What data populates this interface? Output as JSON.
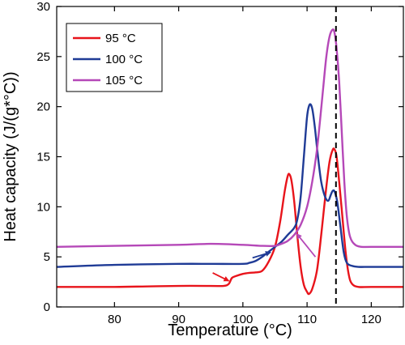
{
  "chart_data": {
    "type": "line",
    "title": "",
    "xlabel": "Temperature (°C)",
    "ylabel": "Heat capacity (J/(g*°C))",
    "xlim": [
      71,
      125
    ],
    "ylim": [
      0,
      30
    ],
    "xticks": [
      80,
      90,
      100,
      110,
      120
    ],
    "yticks": [
      0,
      5,
      10,
      15,
      20,
      25,
      30
    ],
    "grid": false,
    "legend_position": "top-left",
    "series": [
      {
        "name": "95 °C",
        "color": "#e8141b",
        "x": [
          71,
          80,
          85,
          90,
          95,
          97,
          97.8,
          98.3,
          99,
          100,
          101,
          102,
          103,
          104,
          105,
          105.8,
          106.5,
          107,
          107.3,
          107.6,
          108,
          108.5,
          109,
          109.5,
          110,
          110.3,
          110.8,
          111.5,
          112,
          112.5,
          113,
          113.5,
          114,
          114.3,
          114.6,
          115,
          115.5,
          116,
          116.5,
          117,
          118,
          120,
          125
        ],
        "y": [
          2.0,
          2.0,
          2.05,
          2.1,
          2.1,
          2.1,
          2.3,
          2.9,
          3.1,
          3.3,
          3.4,
          3.45,
          3.6,
          4.5,
          6.0,
          8.5,
          11.5,
          13.1,
          13.2,
          12.5,
          10.5,
          7.0,
          4.0,
          2.2,
          1.5,
          1.3,
          1.8,
          3.5,
          6.0,
          9.0,
          12.0,
          14.5,
          15.7,
          15.7,
          15.0,
          12.5,
          9.0,
          5.5,
          3.2,
          2.3,
          2.0,
          2.0,
          2.0
        ]
      },
      {
        "name": "100 °C",
        "color": "#1f3b96",
        "x": [
          71,
          80,
          90,
          95,
          100,
          101,
          102,
          103,
          104,
          105,
          106,
          107,
          108,
          108.5,
          109,
          109.5,
          110,
          110.4,
          110.8,
          111.2,
          111.7,
          112.2,
          112.8,
          113.3,
          113.7,
          114,
          114.3,
          114.7,
          115.2,
          115.7,
          116.2,
          117,
          118,
          120,
          125
        ],
        "y": [
          4.0,
          4.2,
          4.3,
          4.3,
          4.3,
          4.4,
          4.6,
          5.0,
          5.5,
          6.0,
          6.5,
          7.2,
          7.9,
          8.8,
          11.0,
          15.0,
          19.0,
          20.2,
          19.8,
          18.0,
          15.0,
          12.5,
          11.0,
          10.6,
          11.2,
          11.6,
          11.5,
          10.5,
          8.0,
          5.5,
          4.4,
          4.1,
          4.0,
          4.0,
          4.0
        ]
      },
      {
        "name": "105 °C",
        "color": "#b548b8",
        "x": [
          71,
          80,
          90,
          95,
          100,
          103,
          105,
          106,
          107,
          108,
          109,
          110,
          110.8,
          111.5,
          112,
          112.5,
          113,
          113.5,
          114,
          114.3,
          114.6,
          115,
          115.4,
          115.8,
          116.2,
          116.7,
          117.5,
          118.5,
          120,
          125
        ],
        "y": [
          6.0,
          6.1,
          6.2,
          6.3,
          6.2,
          6.1,
          6.1,
          6.3,
          6.6,
          7.2,
          8.2,
          10.0,
          12.5,
          15.5,
          18.5,
          21.8,
          25.0,
          27.0,
          27.7,
          27.3,
          25.8,
          22.5,
          17.5,
          12.5,
          9.0,
          7.0,
          6.2,
          6.0,
          6.0,
          6.0
        ]
      }
    ],
    "annotations": [
      {
        "type": "vertical-dashed-line",
        "x": 114.5,
        "color": "#000000"
      },
      {
        "type": "arrow",
        "color": "#e8141b",
        "from": [
          95.3,
          3.4
        ],
        "to": [
          97.8,
          2.6
        ]
      },
      {
        "type": "arrow",
        "color": "#1f3b96",
        "from": [
          101.5,
          4.9
        ],
        "to": [
          104.3,
          5.45
        ]
      },
      {
        "type": "arrow",
        "color": "#b548b8",
        "from": [
          111.3,
          5.0
        ],
        "to": [
          108.4,
          7.3
        ]
      }
    ]
  }
}
